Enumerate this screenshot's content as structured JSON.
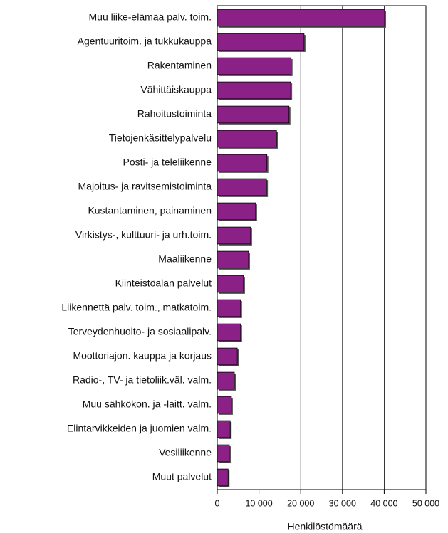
{
  "chart_data": {
    "type": "barh",
    "categories": [
      "Muu liike-elämää palv.  toim.",
      "Agentuuritoim. ja tukkukauppa",
      "Rakentaminen",
      "Vähittäiskauppa",
      "Rahoitustoiminta",
      "Tietojenkäsittelypalvelu",
      "Posti- ja teleliikenne",
      "Majoitus- ja ravitsemistoiminta",
      "Kustantaminen, painaminen",
      "Virkistys-, kulttuuri- ja urh.toim.",
      "Maaliikenne",
      "Kiinteistöalan palvelut",
      "Liikennettä palv. toim., matkatoim.",
      "Terveydenhuolto- ja sosiaalipalv.",
      "Moottoriajon. kauppa ja korjaus",
      "Radio-, TV- ja tietoliik.väl. valm.",
      "Muu sähkökon. ja -laitt. valm.",
      "Elintarvikkeiden ja juomien valm.",
      "Vesiliikenne",
      "Muut palvelut"
    ],
    "values": [
      40100,
      20800,
      17700,
      17600,
      17200,
      14200,
      11900,
      11800,
      9200,
      8000,
      7500,
      6300,
      5600,
      5600,
      4800,
      4100,
      3400,
      3100,
      2900,
      2600
    ],
    "color": "#8b2187",
    "xlabel": "Henkilöstömäärä",
    "xlim": [
      0,
      50000
    ],
    "xticks": [
      0,
      {
        "value": 10000,
        "label": "10 000"
      },
      {
        "value": 20000,
        "label": "20 000"
      },
      {
        "value": 30000,
        "label": "30 000"
      },
      {
        "value": 40000,
        "label": "40 000"
      },
      {
        "value": 50000,
        "label": "50 000"
      }
    ],
    "grid": true
  }
}
